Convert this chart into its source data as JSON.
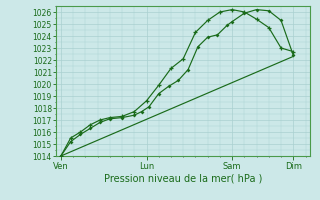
{
  "xlabel": "Pression niveau de la mer( hPa )",
  "bg_color": "#cce8e8",
  "grid_color": "#aad0d0",
  "line_color": "#1a6b1a",
  "spine_color": "#4a9a4a",
  "ylim": [
    1014,
    1026.5
  ],
  "ytick_vals": [
    1014,
    1015,
    1016,
    1017,
    1018,
    1019,
    1020,
    1021,
    1022,
    1023,
    1024,
    1025,
    1026
  ],
  "x_tick_labels": [
    "Ven",
    "Lun",
    "Sam",
    "Dim"
  ],
  "x_tick_positions": [
    0.0,
    3.5,
    7.0,
    9.5
  ],
  "xlim": [
    -0.2,
    10.2
  ],
  "series1_x": [
    0.0,
    0.4,
    0.8,
    1.2,
    1.6,
    2.0,
    2.5,
    3.0,
    3.3,
    3.6,
    4.0,
    4.4,
    4.8,
    5.2,
    5.6,
    6.0,
    6.4,
    6.8,
    7.0,
    7.5,
    8.0,
    8.5,
    9.0,
    9.5
  ],
  "series1_y": [
    1014.0,
    1015.2,
    1015.8,
    1016.3,
    1016.8,
    1017.1,
    1017.2,
    1017.4,
    1017.7,
    1018.1,
    1019.2,
    1019.8,
    1020.3,
    1021.2,
    1023.1,
    1023.9,
    1024.1,
    1024.9,
    1025.2,
    1025.9,
    1026.2,
    1026.1,
    1025.3,
    1022.4
  ],
  "series2_x": [
    0.0,
    0.4,
    0.8,
    1.2,
    1.6,
    2.0,
    2.5,
    3.0,
    3.5,
    4.0,
    4.5,
    5.0,
    5.5,
    6.0,
    6.5,
    7.0,
    7.5,
    8.0,
    8.5,
    9.0,
    9.5
  ],
  "series2_y": [
    1014.0,
    1015.5,
    1016.0,
    1016.6,
    1017.0,
    1017.2,
    1017.3,
    1017.7,
    1018.6,
    1019.9,
    1021.3,
    1022.1,
    1024.3,
    1025.3,
    1026.0,
    1026.2,
    1026.0,
    1025.4,
    1024.7,
    1023.0,
    1022.7
  ],
  "series3_x": [
    0.0,
    9.5
  ],
  "series3_y": [
    1014.0,
    1022.3
  ],
  "xlabel_fontsize": 7.0,
  "tick_fontsize": 5.5
}
